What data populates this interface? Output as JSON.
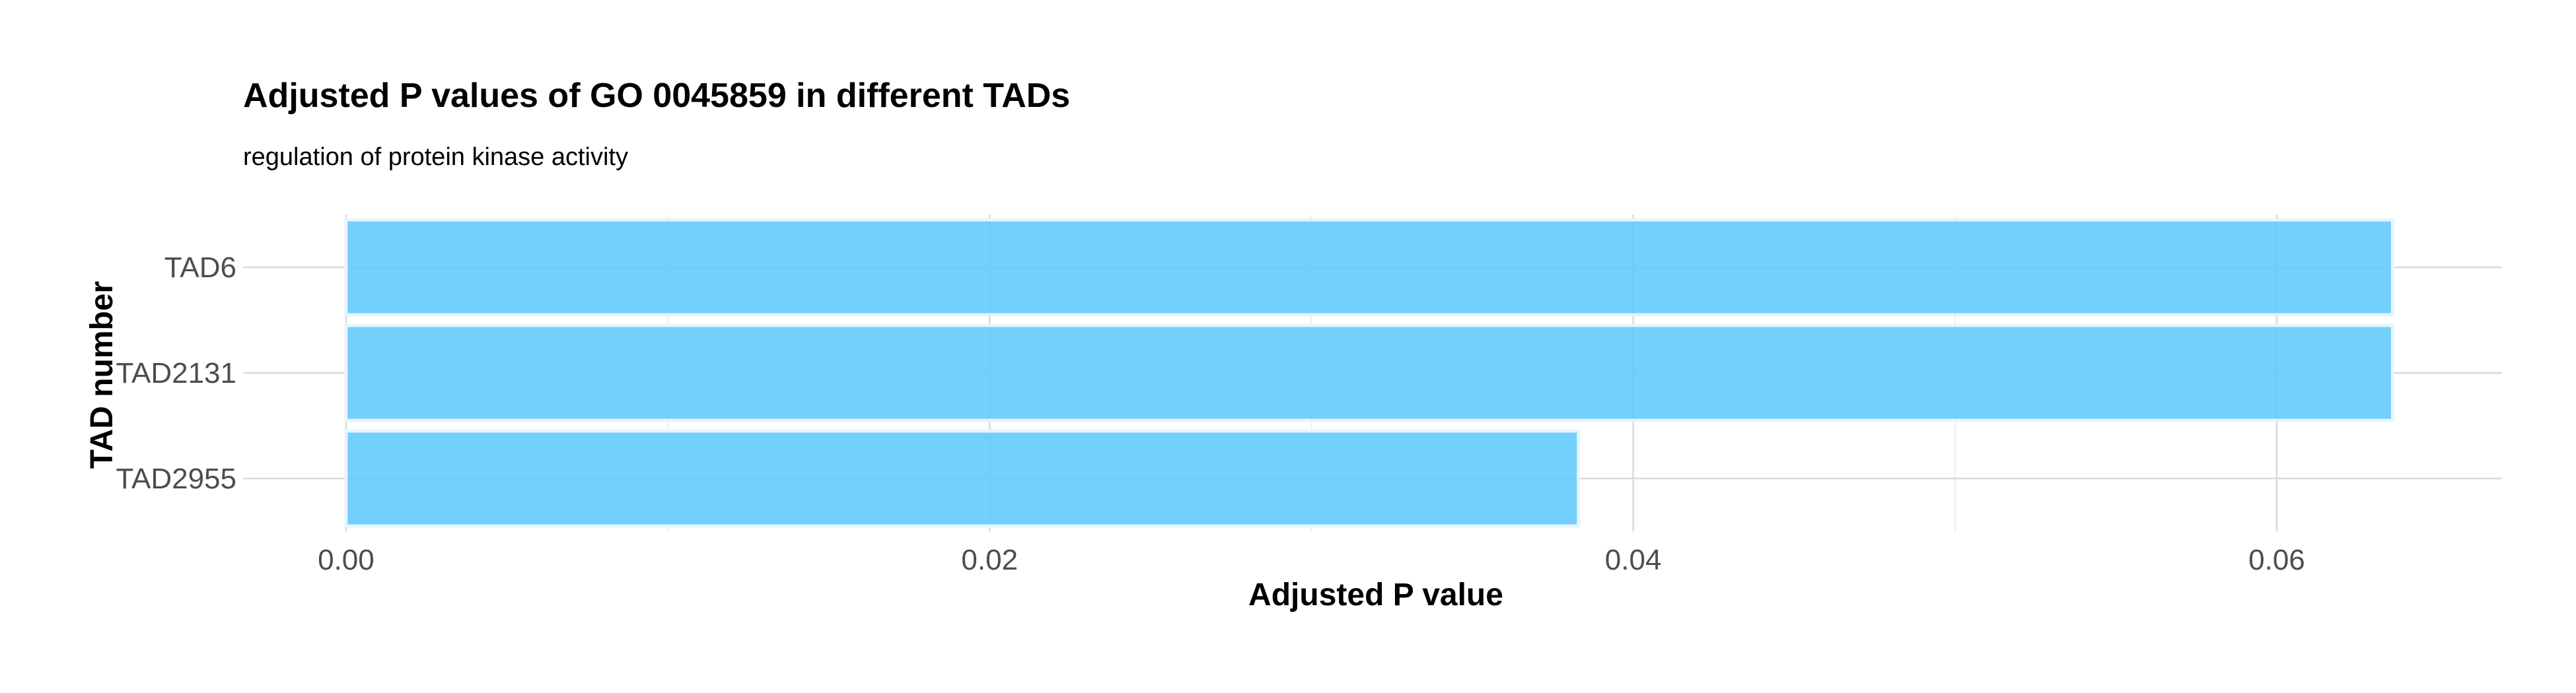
{
  "chart_data": {
    "type": "bar",
    "orientation": "horizontal",
    "title": "Adjusted P values of GO 0045859 in different TADs",
    "subtitle": "regulation of protein kinase activity",
    "xlabel": "Adjusted P value",
    "ylabel": "TAD number",
    "categories": [
      "TAD6",
      "TAD2131",
      "TAD2955"
    ],
    "values": [
      0.0636,
      0.0636,
      0.0383
    ],
    "xlim": [
      -0.0032,
      0.067
    ],
    "x_ticks": [
      0.0,
      0.02,
      0.04,
      0.06
    ],
    "x_tick_labels": [
      "0.00",
      "0.02",
      "0.04",
      "0.06"
    ],
    "grid": true,
    "legend": "none",
    "bar_color": "#5bc8fb"
  }
}
